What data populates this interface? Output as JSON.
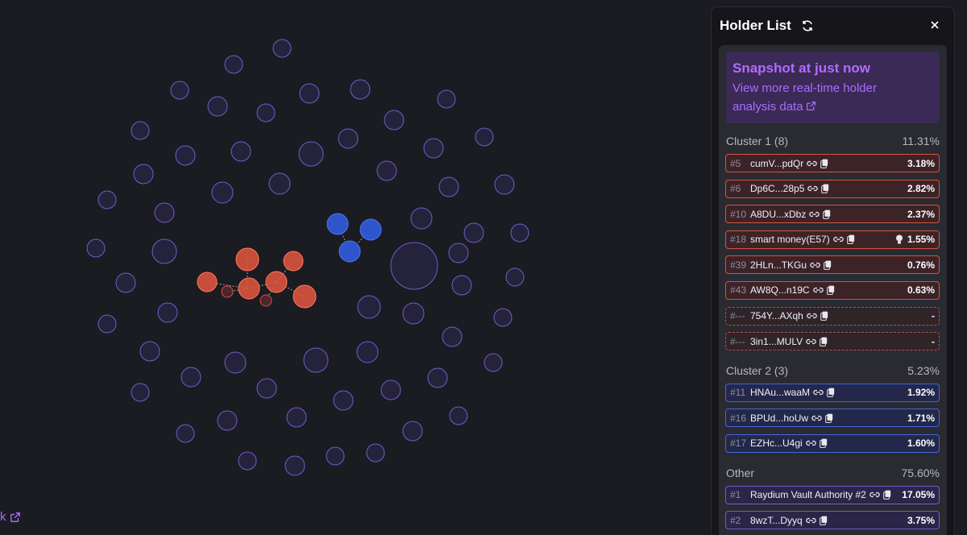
{
  "graph": {
    "red_color": "#d9533c",
    "blue_color": "#2f59d6",
    "neutral_color": "#6e5fc8",
    "bottom_link_label": "k"
  },
  "panel": {
    "title": "Holder List",
    "snapshot_title": "Snapshot at just now",
    "snapshot_link_line1": "View more real-time holder",
    "snapshot_link_line2": "analysis data"
  },
  "clusters": [
    {
      "label": "Cluster 1 (8)",
      "percent": "11.31%",
      "rows": [
        {
          "rank": "#5",
          "addr": "cumV...pdQr",
          "pct": "3.18%",
          "style": "red"
        },
        {
          "rank": "#6",
          "addr": "Dp6C...28p5",
          "pct": "2.82%",
          "style": "red"
        },
        {
          "rank": "#10",
          "addr": "A8DU...xDbz",
          "pct": "2.37%",
          "style": "red"
        },
        {
          "rank": "#18",
          "addr": "smart money(E57)",
          "pct": "1.55%",
          "style": "red",
          "bulb": true
        },
        {
          "rank": "#39",
          "addr": "2HLn...TKGu",
          "pct": "0.76%",
          "style": "red"
        },
        {
          "rank": "#43",
          "addr": "AW8Q...n19C",
          "pct": "0.63%",
          "style": "red"
        },
        {
          "rank": "#---",
          "addr": "754Y...AXqh",
          "pct": "-",
          "style": "red-dash"
        },
        {
          "rank": "#---",
          "addr": "3in1...MULV",
          "pct": "-",
          "style": "red-dash"
        }
      ]
    },
    {
      "label": "Cluster 2 (3)",
      "percent": "5.23%",
      "rows": [
        {
          "rank": "#11",
          "addr": "HNAu...waaM",
          "pct": "1.92%",
          "style": "blue"
        },
        {
          "rank": "#16",
          "addr": "BPUd...hoUw",
          "pct": "1.71%",
          "style": "blue"
        },
        {
          "rank": "#17",
          "addr": "EZHc...U4gi",
          "pct": "1.60%",
          "style": "blue"
        }
      ]
    },
    {
      "label": "Other",
      "percent": "75.60%",
      "rows": [
        {
          "rank": "#1",
          "addr": "Raydium Vault Authority #2",
          "pct": "17.05%",
          "style": "purple"
        },
        {
          "rank": "#2",
          "addr": "8wzT...Dyyq",
          "pct": "3.75%",
          "style": "purple"
        }
      ]
    }
  ]
}
